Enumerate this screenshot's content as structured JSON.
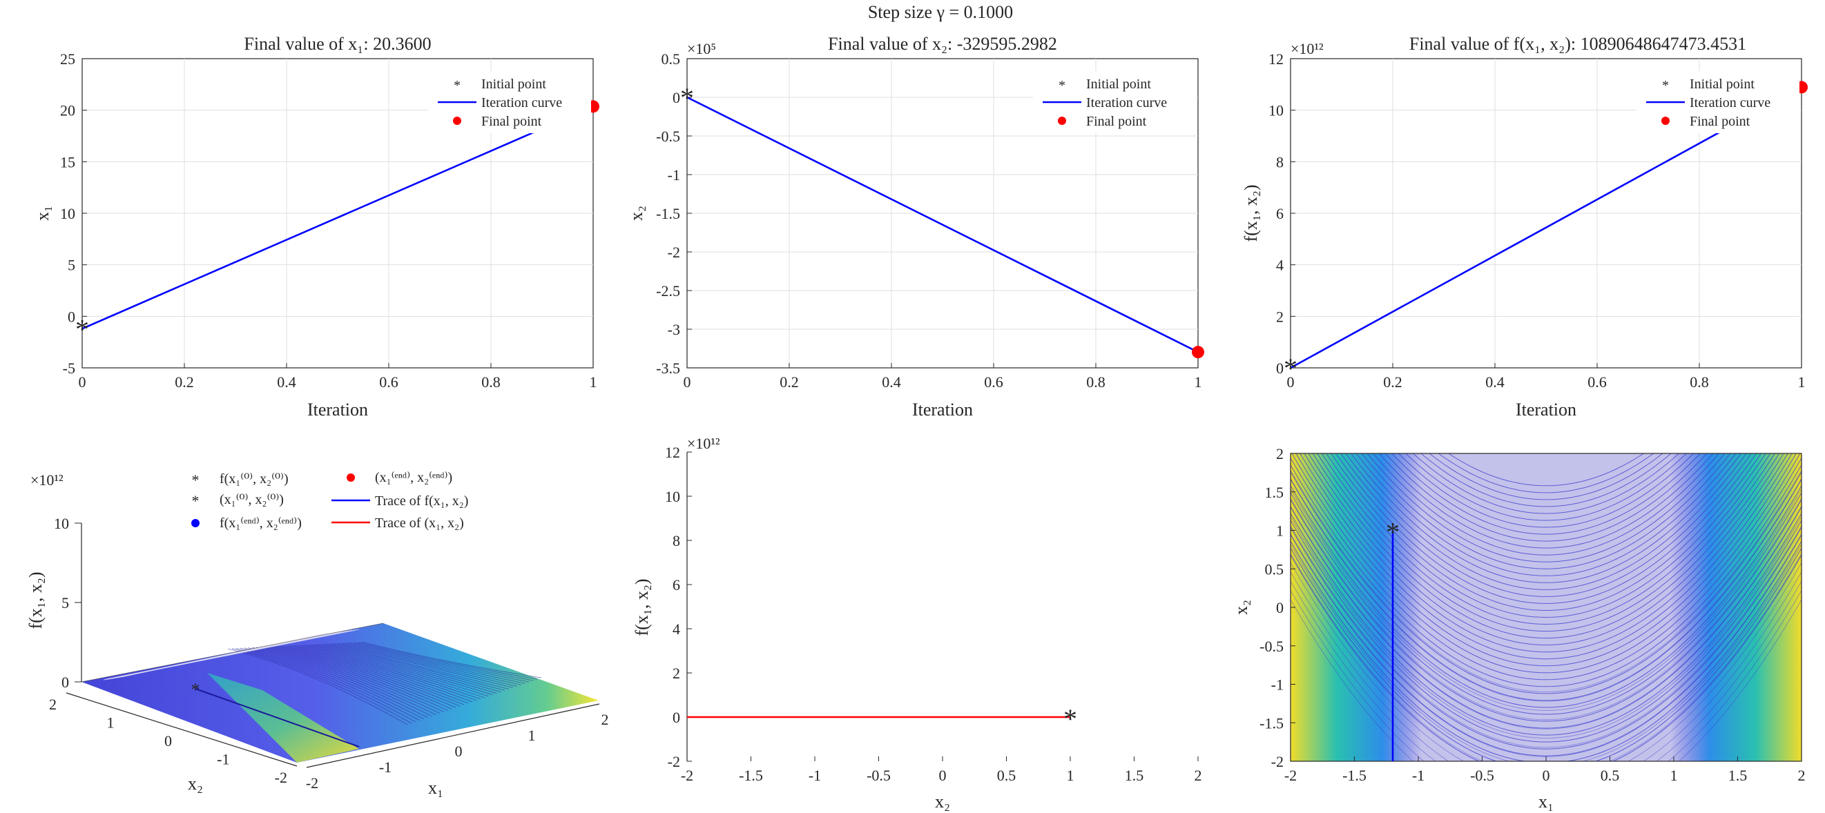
{
  "figure": {
    "title": "Step size γ = 0.1000"
  },
  "chart_data": [
    {
      "type": "line",
      "title": "Final value of x₁: 20.3600",
      "xlabel": "Iteration",
      "ylabel": "x₁",
      "xlim": [
        0,
        1
      ],
      "ylim": [
        -5,
        25
      ],
      "xticks": [
        "0",
        "0.2",
        "0.4",
        "0.6",
        "0.8",
        "1"
      ],
      "yticks": [
        "-5",
        "0",
        "5",
        "10",
        "15",
        "20",
        "25"
      ],
      "grid": true,
      "legend_position": "top-right",
      "legend": [
        "Initial point",
        "Iteration curve",
        "Final point"
      ],
      "series": [
        {
          "x": [
            0,
            1
          ],
          "y": [
            -1.2,
            20.36
          ]
        }
      ],
      "colors": {
        "curve": "#0000ff",
        "markers": "#ff0000"
      }
    },
    {
      "type": "line",
      "title": "Final value of x₂: -329595.2982",
      "xlabel": "Iteration",
      "ylabel": "x₂",
      "xlim": [
        0,
        1
      ],
      "ylim": [
        -3.5,
        0.5
      ],
      "multiplier": "×10⁵",
      "xticks": [
        "0",
        "0.2",
        "0.4",
        "0.6",
        "0.8",
        "1"
      ],
      "yticks": [
        "-3.5",
        "-3",
        "-2.5",
        "-2",
        "-1.5",
        "-1",
        "-0.5",
        "0",
        "0.5"
      ],
      "grid": true,
      "legend_position": "top-right",
      "legend": [
        "Initial point",
        "Iteration curve",
        "Final point"
      ],
      "series": [
        {
          "x": [
            0,
            1
          ],
          "y": [
            1e-05,
            -3.295952982
          ]
        }
      ],
      "colors": {
        "curve": "#0000ff",
        "markers": "#ff0000"
      }
    },
    {
      "type": "line",
      "title": "Final value of f(x₁, x₂): 10890648647473.4531",
      "xlabel": "Iteration",
      "ylabel": "f(x₁, x₂)",
      "xlim": [
        0,
        1
      ],
      "ylim": [
        0,
        12
      ],
      "multiplier": "×10¹²",
      "xticks": [
        "0",
        "0.2",
        "0.4",
        "0.6",
        "0.8",
        "1"
      ],
      "yticks": [
        "0",
        "2",
        "4",
        "6",
        "8",
        "10",
        "12"
      ],
      "grid": true,
      "legend_position": "top-right",
      "legend": [
        "Initial point",
        "Iteration curve",
        "Final point"
      ],
      "series": [
        {
          "x": [
            0,
            1
          ],
          "y": [
            2.42e-08,
            10.890648647473453
          ]
        }
      ],
      "colors": {
        "curve": "#0000ff",
        "markers": "#ff0000"
      }
    },
    {
      "type": "area",
      "subtype": "surface-3d",
      "xlabel": "x₁",
      "ylabel": "x₂",
      "zlabel": "f(x₁, x₂)",
      "multiplier": "×10¹²",
      "x_ticks": [
        "-2",
        "-1",
        "0",
        "1",
        "2"
      ],
      "y_ticks": [
        "-2",
        "-1",
        "0",
        "1",
        "2"
      ],
      "z_ticks": [
        "0",
        "5",
        "10"
      ],
      "legend_position": "top",
      "legend": [
        "f(x₁⁽⁰⁾, x₂⁽⁰⁾)",
        "(x₁⁽⁰⁾, x₂⁽⁰⁾)",
        "f(x₁⁽ᵉⁿᵈ⁾, x₂⁽ᵉⁿᵈ⁾)",
        "(x₁⁽ᵉⁿᵈ⁾, x₂⁽ᵉⁿᵈ⁾)",
        "Trace of f(x₁, x₂)",
        "Trace of (x₁, x₂)"
      ],
      "initial_point": {
        "x1": -1.2,
        "x2": 1
      },
      "colors": {
        "surface_low": "#3b3bd6",
        "surface_high": "#f5e52a",
        "trace_f": "#0000ff",
        "trace_xy": "#ff0000"
      }
    },
    {
      "type": "line",
      "subtype": "side-view",
      "xlabel": "x₂",
      "ylabel": "f(x₁, x₂)",
      "multiplier": "×10¹²",
      "xlim": [
        -2,
        2
      ],
      "ylim": [
        -2,
        12
      ],
      "xticks": [
        "-2",
        "-1.5",
        "-1",
        "-0.5",
        "0",
        "0.5",
        "1",
        "1.5",
        "2"
      ],
      "yticks": [
        "-2",
        "0",
        "2",
        "4",
        "6",
        "8",
        "10",
        "12"
      ],
      "series": [
        {
          "name": "",
          "x": [
            -2,
            1
          ],
          "y": [
            0,
            0
          ]
        }
      ],
      "marker_point": {
        "x": 1,
        "y": 0
      },
      "colors": {
        "trace": "#ff0000"
      }
    },
    {
      "type": "heatmap",
      "subtype": "contour",
      "xlabel": "x₁",
      "ylabel": "x₂",
      "xlim": [
        -2,
        2
      ],
      "ylim": [
        -2,
        2
      ],
      "xticks": [
        "-2",
        "-1.5",
        "-1",
        "-0.5",
        "0",
        "0.5",
        "1",
        "1.5",
        "2"
      ],
      "yticks": [
        "-2",
        "-1.5",
        "-1",
        "-0.5",
        "0",
        "0.5",
        "1",
        "1.5",
        "2"
      ],
      "trace": {
        "x": [
          -1.2,
          -1.2
        ],
        "y": [
          1,
          -2
        ]
      },
      "initial_point": {
        "x": -1.2,
        "y": 1
      },
      "colors": {
        "contour": "#3a3ad0",
        "fill_light": "#c3c2ea",
        "trace": "#0000ff",
        "marker": "#ff0000"
      }
    }
  ]
}
